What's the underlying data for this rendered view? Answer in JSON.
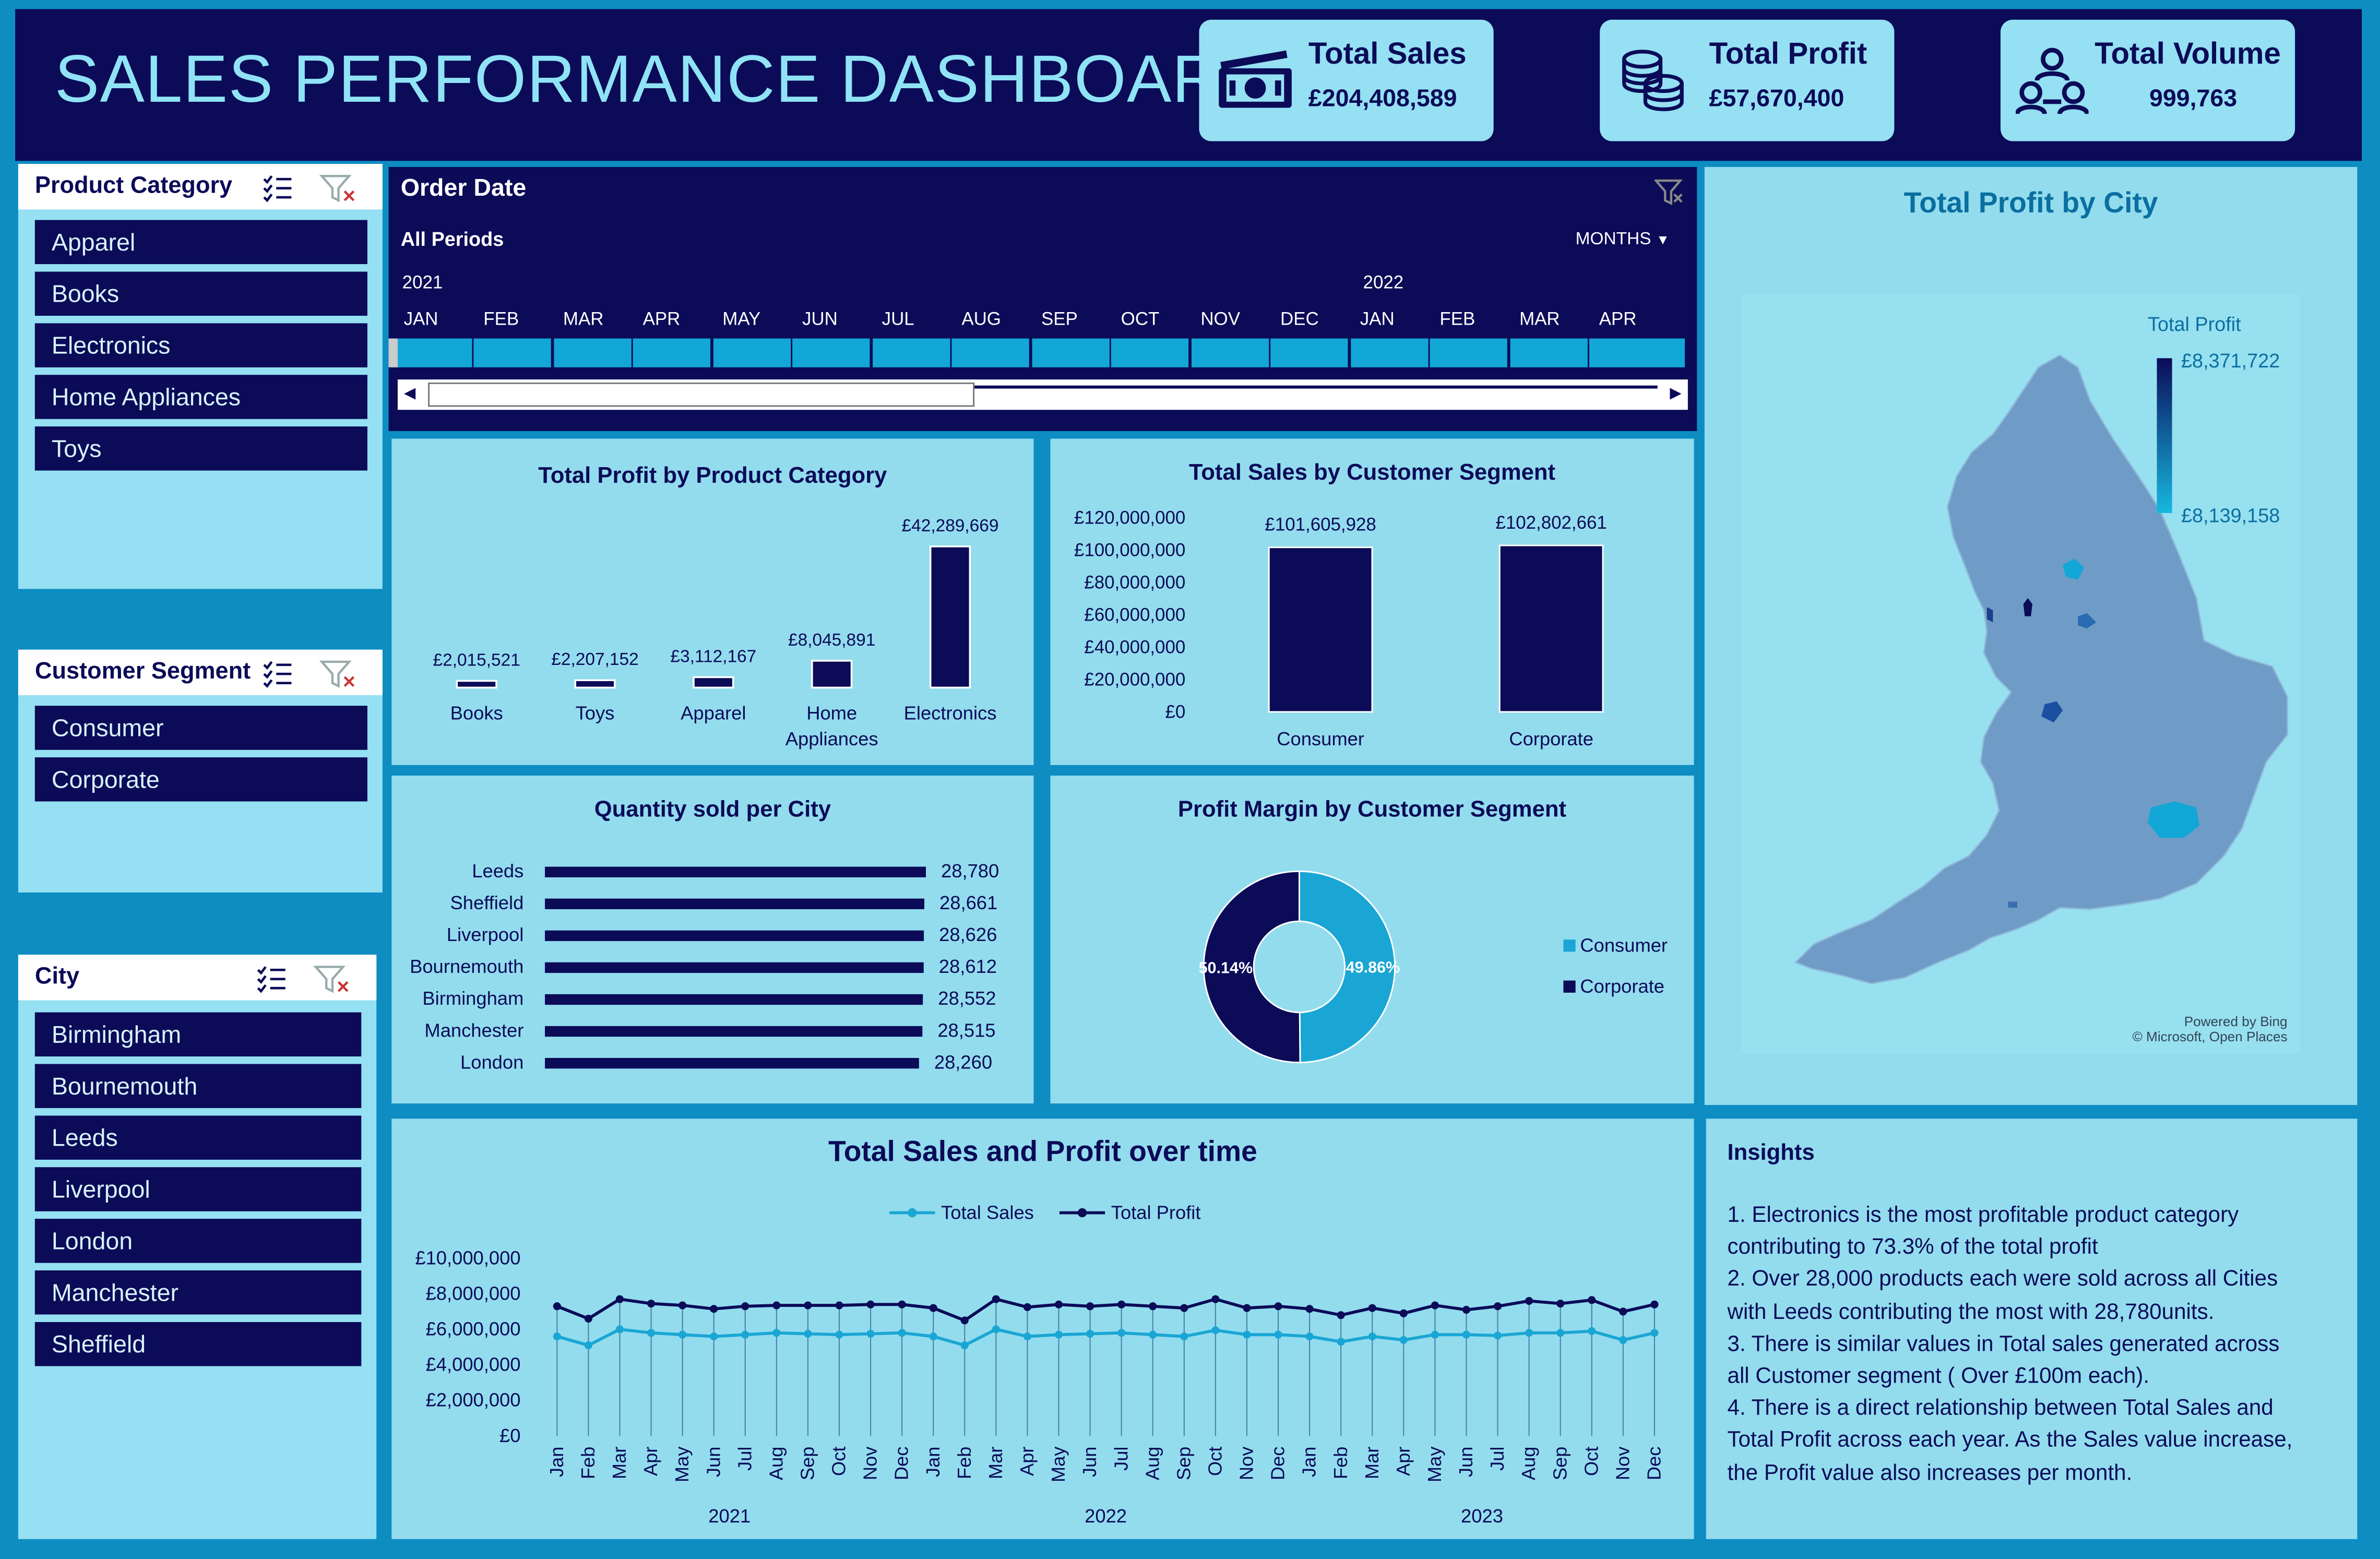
{
  "header": {
    "title": "SALES PERFORMANCE DASHBOARD"
  },
  "kpis": [
    {
      "label": "Total Sales",
      "value": "£204,408,589",
      "icon": "money-icon"
    },
    {
      "label": "Total Profit",
      "value": "£57,670,400",
      "icon": "coins-icon"
    },
    {
      "label": "Total Volume",
      "value": "999,763",
      "icon": "people-network-icon"
    }
  ],
  "slicers": {
    "product_category": {
      "title": "Product Category",
      "items": [
        "Apparel",
        "Books",
        "Electronics",
        "Home Appliances",
        "Toys"
      ]
    },
    "customer_segment": {
      "title": "Customer Segment",
      "items": [
        "Consumer",
        "Corporate"
      ]
    },
    "city": {
      "title": "City",
      "items": [
        "Birmingham",
        "Bournemouth",
        "Leeds",
        "Liverpool",
        "London",
        "Manchester",
        "Sheffield"
      ]
    }
  },
  "timeline": {
    "title": "Order Date",
    "period": "All Periods",
    "level": "MONTHS",
    "years": [
      "2021",
      "2022"
    ],
    "months": [
      "JAN",
      "FEB",
      "MAR",
      "APR",
      "MAY",
      "JUN",
      "JUL",
      "AUG",
      "SEP",
      "OCT",
      "NOV",
      "DEC",
      "JAN",
      "FEB",
      "MAR",
      "APR"
    ]
  },
  "map": {
    "title": "Total Profit by City",
    "legend_title": "Total Profit",
    "legend_max": "£8,371,722",
    "legend_min": "£8,139,158",
    "credit1": "Powered by Bing",
    "credit2": "© Microsoft, Open Places"
  },
  "insights": {
    "title": "Insights",
    "lines": [
      "1. Electronics is the most profitable product category",
      "contributing to 73.3% of the total profit",
      "2. Over 28,000 products each were sold across all Cities",
      "with Leeds contributing the most with 28,780units.",
      "3. There is  similar values in Total sales  generated across",
      "all Customer segment ( Over £100m each).",
      "4. There is a direct relationship between Total Sales and",
      "Total Profit across each year. As the Sales value increase,",
      "the Profit value also increases per month."
    ]
  },
  "colors": {
    "navy": "#0b0b58",
    "cyan": "#1aa6d4",
    "panel": "#93dcee",
    "background": "#0d8dc2"
  },
  "chart_data": [
    {
      "id": "profit_by_category",
      "type": "bar",
      "title": "Total Profit by Product Category",
      "categories": [
        "Books",
        "Toys",
        "Apparel",
        "Home Appliances",
        "Electronics"
      ],
      "category_lines": [
        [
          "Books"
        ],
        [
          "Toys"
        ],
        [
          "Apparel"
        ],
        [
          "Home",
          "Appliances"
        ],
        [
          "Electronics"
        ]
      ],
      "values": [
        2015521,
        2207152,
        3112167,
        8045891,
        42289669
      ],
      "labels": [
        "£2,015,521",
        "£2,207,152",
        "£3,112,167",
        "£8,045,891",
        "£42,289,669"
      ]
    },
    {
      "id": "sales_by_segment",
      "type": "bar",
      "title": "Total Sales by Customer Segment",
      "categories": [
        "Consumer",
        "Corporate"
      ],
      "values": [
        101605928,
        102802661
      ],
      "labels": [
        "£101,605,928",
        "£102,802,661"
      ],
      "ylim": [
        0,
        120000000
      ],
      "yticks": [
        "£0",
        "£20,000,000",
        "£40,000,000",
        "£60,000,000",
        "£80,000,000",
        "£100,000,000",
        "£120,000,000"
      ]
    },
    {
      "id": "quantity_by_city",
      "type": "bar",
      "orientation": "horizontal",
      "title": "Quantity sold per City",
      "categories": [
        "Leeds",
        "Sheffield",
        "Liverpool",
        "Bournemouth",
        "Birmingham",
        "Manchester",
        "London"
      ],
      "values": [
        28780,
        28661,
        28626,
        28612,
        28552,
        28515,
        28260
      ],
      "labels": [
        "28,780",
        "28,661",
        "28,626",
        "28,612",
        "28,552",
        "28,515",
        "28,260"
      ]
    },
    {
      "id": "margin_by_segment",
      "type": "pie",
      "title": "Profit Margin by Customer Segment",
      "categories": [
        "Consumer",
        "Corporate"
      ],
      "values": [
        49.86,
        50.14
      ],
      "labels": [
        "49.86%",
        "50.14%"
      ],
      "legend": "right"
    },
    {
      "id": "sales_profit_over_time",
      "type": "line",
      "title": "Total Sales and Profit over time",
      "x": [
        "Jan",
        "Feb",
        "Mar",
        "Apr",
        "May",
        "Jun",
        "Jul",
        "Aug",
        "Sep",
        "Oct",
        "Nov",
        "Dec",
        "Jan",
        "Feb",
        "Mar",
        "Apr",
        "May",
        "Jun",
        "Jul",
        "Aug",
        "Sep",
        "Oct",
        "Nov",
        "Dec",
        "Jan",
        "Feb",
        "Mar",
        "Apr",
        "May",
        "Jun",
        "Jul",
        "Aug",
        "Sep",
        "Oct",
        "Nov",
        "Dec"
      ],
      "years": [
        "2021",
        "2022",
        "2023"
      ],
      "ylim": [
        0,
        10000000
      ],
      "yticks": [
        "£0",
        "£2,000,000",
        "£4,000,000",
        "£6,000,000",
        "£8,000,000",
        "£10,000,000"
      ],
      "legend": "top",
      "series": [
        {
          "name": "Total Sales",
          "values": [
            5600000,
            5100000,
            6000000,
            5800000,
            5700000,
            5600000,
            5700000,
            5800000,
            5750000,
            5700000,
            5750000,
            5800000,
            5600000,
            5100000,
            6000000,
            5600000,
            5700000,
            5750000,
            5800000,
            5700000,
            5600000,
            5950000,
            5700000,
            5700000,
            5600000,
            5300000,
            5600000,
            5400000,
            5700000,
            5700000,
            5650000,
            5800000,
            5800000,
            5900000,
            5400000,
            5800000
          ]
        },
        {
          "name": "Total Profit",
          "values": [
            7300000,
            6600000,
            7700000,
            7450000,
            7350000,
            7150000,
            7300000,
            7350000,
            7350000,
            7350000,
            7400000,
            7400000,
            7200000,
            6500000,
            7700000,
            7250000,
            7400000,
            7300000,
            7400000,
            7300000,
            7200000,
            7700000,
            7200000,
            7300000,
            7150000,
            6800000,
            7200000,
            6900000,
            7350000,
            7100000,
            7300000,
            7600000,
            7450000,
            7650000,
            7000000,
            7400000
          ]
        }
      ]
    }
  ]
}
